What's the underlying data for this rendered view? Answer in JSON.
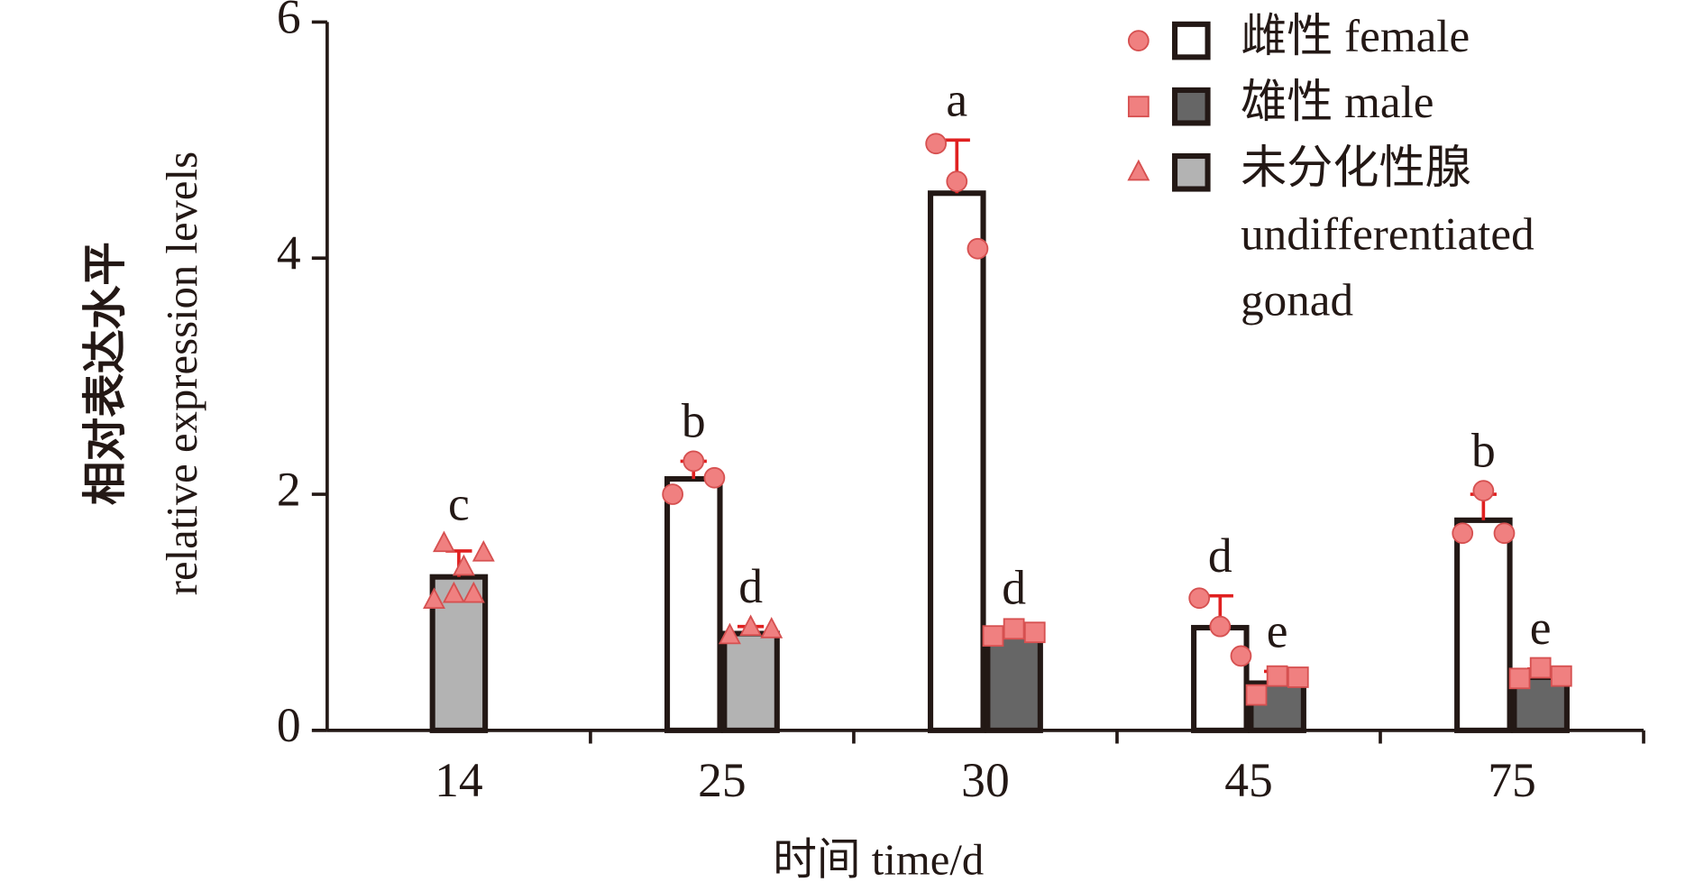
{
  "chart_data": {
    "type": "bar",
    "y_label": [
      "相对表达水平",
      "relative expression levels"
    ],
    "x_label": "时间 time/d",
    "categories": [
      "14",
      "25",
      "30",
      "45",
      "75"
    ],
    "series": [
      {
        "name": "雌性 female",
        "color": "#ffffff",
        "marker": "circle",
        "values": [
          null,
          2.13,
          4.55,
          0.87,
          1.78
        ],
        "errors": [
          null,
          0.15,
          0.45,
          0.27,
          0.22
        ],
        "letters": [
          null,
          "b",
          "a",
          "d",
          "b"
        ],
        "points": [
          null,
          [
            2.0,
            2.28,
            2.14
          ],
          [
            4.97,
            4.65,
            4.08
          ],
          [
            1.12,
            0.88,
            0.63
          ],
          [
            1.67,
            2.03,
            1.67
          ]
        ]
      },
      {
        "name": "雄性 male",
        "color": "#666666",
        "marker": "square",
        "values": [
          null,
          null,
          0.8,
          0.4,
          0.45
        ],
        "errors": [
          null,
          null,
          0.07,
          0.1,
          0.07
        ],
        "letters": [
          null,
          null,
          "d",
          "e",
          "e"
        ],
        "points": [
          null,
          null,
          [
            0.8,
            0.86,
            0.83
          ],
          [
            0.3,
            0.46,
            0.45
          ],
          [
            0.44,
            0.53,
            0.46
          ]
        ]
      },
      {
        "name": "未分化性腺 undifferentiated gonad",
        "color": "#b3b3b3",
        "marker": "triangle",
        "values": [
          1.3,
          0.82,
          null,
          null,
          null
        ],
        "errors": [
          0.22,
          0.06,
          null,
          null,
          null
        ],
        "letters": [
          "c",
          "d",
          null,
          null,
          null
        ],
        "points": [
          [
            1.1,
            1.58,
            1.15,
            1.38,
            1.15,
            1.5
          ],
          [
            0.8,
            0.87,
            0.85
          ],
          null,
          null,
          null
        ]
      }
    ],
    "point_color": "#f08080",
    "error_color": "#e02020",
    "ylim": [
      0,
      6
    ],
    "yticks": [
      0,
      2,
      4,
      6
    ]
  }
}
